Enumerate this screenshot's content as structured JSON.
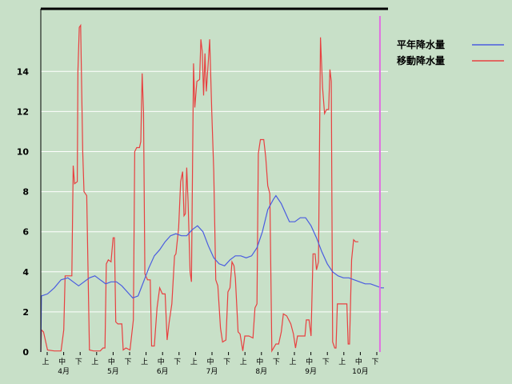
{
  "chart_data": {
    "type": "line",
    "title": "",
    "xlabel": "",
    "ylabel": "",
    "ylim": [
      0,
      16
    ],
    "yticks": [
      0,
      2,
      4,
      6,
      8,
      10,
      12,
      14
    ],
    "grid": true,
    "legend_placement": "top-right",
    "period_labels": [
      "上",
      "中",
      "下"
    ],
    "months": [
      {
        "label": "4月",
        "start": 0
      },
      {
        "label": "5月",
        "start": 3
      },
      {
        "label": "6月",
        "start": 6
      },
      {
        "label": "7月",
        "start": 9
      },
      {
        "label": "8月",
        "start": 12
      },
      {
        "label": "9月",
        "start": 15
      },
      {
        "label": "10月",
        "start": 18
      }
    ],
    "x": [
      0,
      0.05,
      0.3,
      0.6,
      0.9,
      1.2,
      1.5,
      1.8,
      2.1,
      2.4,
      2.7,
      3.0,
      3.3,
      3.6,
      3.9,
      4.2,
      4.5,
      4.8,
      5.1,
      5.4,
      5.7,
      6.0,
      6.3,
      6.6,
      6.9,
      7.2,
      7.5,
      7.8,
      8.1,
      8.4,
      8.7,
      9.0,
      9.3,
      9.6,
      9.9,
      10.2,
      10.5,
      10.8,
      11.1,
      11.4,
      11.7,
      12.0,
      12.3,
      12.6,
      12.9,
      13.2,
      13.5,
      13.8,
      14.1,
      14.4,
      14.7,
      15.0,
      15.3,
      15.6,
      15.9,
      16.2,
      16.5,
      16.8,
      17.1,
      17.4,
      17.7,
      18.0,
      18.3,
      18.6,
      18.9,
      19.2,
      19.5,
      19.8,
      20.1,
      20.4
    ],
    "series": [
      {
        "name": "平年降水量",
        "color": "#4a5ce0",
        "values": [
          0,
          2.8,
          2.9,
          3.1,
          3.4,
          3.7,
          3.7,
          3.5,
          3.3,
          3.4,
          3.7,
          3.8,
          3.6,
          3.5,
          3.5,
          3.5,
          3.5,
          3.3,
          2.9,
          2.8,
          3.3,
          3.9,
          4.7,
          5.1,
          5.6,
          5.9,
          5.8,
          5.8,
          6.1,
          6.3,
          6.1,
          5.4,
          4.7,
          4.4,
          4.3,
          4.6,
          4.8,
          4.8,
          4.7,
          4.8,
          5.2,
          6.1,
          7.3,
          7.8,
          7.3,
          6.5,
          6.5,
          6.7,
          6.7,
          6.2,
          5.4,
          4.7,
          4.1,
          3.9,
          3.7,
          3.7,
          3.6,
          3.4,
          3.4,
          3.3,
          3.2,
          3.2,
          3.2,
          3.2,
          3.2,
          3.2,
          3.2,
          3.2,
          3.2,
          3.2
        ]
      },
      {
        "name": "移動降水量",
        "color": "#e84040"
      }
    ],
    "red_points": [
      [
        0,
        0
      ],
      [
        0.05,
        1.1
      ],
      [
        0.2,
        1.0
      ],
      [
        0.5,
        0.1
      ],
      [
        1.0,
        0.05
      ],
      [
        1.5,
        0.05
      ],
      [
        1.7,
        1.1
      ],
      [
        1.8,
        3.8
      ],
      [
        2.3,
        3.8
      ],
      [
        2.4,
        9.3
      ],
      [
        2.5,
        8.4
      ],
      [
        2.7,
        8.5
      ],
      [
        2.75,
        14.0
      ],
      [
        2.85,
        16.2
      ],
      [
        2.95,
        16.3
      ],
      [
        3.1,
        10.0
      ],
      [
        3.2,
        8.0
      ],
      [
        3.4,
        7.8
      ],
      [
        3.6,
        0.1
      ],
      [
        3.9,
        0.05
      ],
      [
        4.4,
        0.05
      ],
      [
        4.6,
        0.2
      ],
      [
        4.75,
        0.2
      ],
      [
        4.85,
        4.4
      ],
      [
        5.0,
        4.6
      ],
      [
        5.2,
        4.5
      ],
      [
        5.35,
        5.7
      ],
      [
        5.45,
        5.7
      ],
      [
        5.55,
        1.5
      ],
      [
        5.7,
        1.4
      ],
      [
        6.0,
        1.4
      ],
      [
        6.1,
        0.1
      ],
      [
        6.3,
        0.2
      ],
      [
        6.6,
        0.1
      ],
      [
        6.85,
        1.6
      ],
      [
        6.95,
        10.0
      ],
      [
        7.1,
        10.2
      ],
      [
        7.3,
        10.2
      ],
      [
        7.4,
        10.5
      ],
      [
        7.5,
        13.9
      ],
      [
        7.6,
        12.0
      ],
      [
        7.7,
        3.9
      ],
      [
        7.9,
        3.6
      ],
      [
        8.1,
        3.6
      ],
      [
        8.2,
        0.3
      ],
      [
        8.4,
        0.3
      ],
      [
        8.6,
        2.2
      ],
      [
        8.8,
        3.2
      ],
      [
        9.0,
        2.9
      ],
      [
        9.2,
        2.9
      ],
      [
        9.35,
        0.6
      ],
      [
        9.5,
        1.5
      ],
      [
        9.7,
        2.4
      ],
      [
        9.9,
        4.8
      ],
      [
        10.0,
        4.9
      ],
      [
        10.2,
        6.2
      ],
      [
        10.35,
        8.5
      ],
      [
        10.5,
        9.0
      ],
      [
        10.6,
        6.8
      ],
      [
        10.7,
        6.9
      ],
      [
        10.8,
        9.2
      ],
      [
        10.9,
        7.5
      ],
      [
        11.05,
        4.0
      ],
      [
        11.15,
        3.5
      ],
      [
        11.3,
        14.4
      ],
      [
        11.4,
        12.2
      ],
      [
        11.55,
        13.5
      ],
      [
        11.75,
        13.6
      ],
      [
        11.85,
        15.6
      ],
      [
        11.95,
        15.0
      ],
      [
        12.05,
        12.8
      ],
      [
        12.15,
        14.9
      ],
      [
        12.25,
        13.0
      ],
      [
        12.4,
        14.5
      ],
      [
        12.5,
        15.6
      ],
      [
        12.65,
        12.0
      ],
      [
        12.8,
        9.0
      ],
      [
        12.95,
        3.6
      ],
      [
        13.1,
        3.3
      ],
      [
        13.3,
        1.2
      ],
      [
        13.45,
        0.5
      ],
      [
        13.7,
        0.6
      ],
      [
        13.85,
        3.0
      ],
      [
        14.0,
        3.2
      ],
      [
        14.15,
        4.5
      ],
      [
        14.3,
        4.3
      ],
      [
        14.4,
        3.7
      ],
      [
        14.6,
        1.0
      ],
      [
        14.75,
        0.9
      ],
      [
        14.95,
        0.05
      ],
      [
        15.1,
        0.8
      ],
      [
        15.4,
        0.8
      ],
      [
        15.7,
        0.7
      ],
      [
        15.85,
        2.2
      ],
      [
        16.0,
        2.4
      ],
      [
        16.1,
        9.9
      ],
      [
        16.25,
        10.6
      ],
      [
        16.5,
        10.6
      ],
      [
        16.65,
        9.7
      ],
      [
        16.8,
        8.3
      ],
      [
        16.95,
        7.9
      ],
      [
        17.1,
        0.05
      ],
      [
        17.4,
        0.4
      ],
      [
        17.6,
        0.4
      ],
      [
        17.8,
        1.0
      ],
      [
        17.95,
        1.9
      ],
      [
        18.2,
        1.8
      ],
      [
        18.5,
        1.4
      ],
      [
        18.7,
        0.9
      ],
      [
        18.85,
        0.2
      ],
      [
        19.0,
        0.8
      ],
      [
        19.3,
        0.8
      ],
      [
        19.55,
        0.8
      ],
      [
        19.65,
        1.6
      ],
      [
        19.85,
        1.6
      ],
      [
        20.0,
        0.8
      ],
      [
        20.15,
        4.9
      ],
      [
        20.3,
        4.9
      ],
      [
        20.4,
        4.1
      ],
      [
        20.55,
        4.5
      ],
      [
        20.7,
        15.7
      ],
      [
        20.85,
        13.2
      ],
      [
        21.0,
        11.9
      ],
      [
        21.15,
        12.1
      ],
      [
        21.3,
        12.1
      ],
      [
        21.4,
        14.1
      ],
      [
        21.5,
        13.5
      ],
      [
        21.6,
        0.5
      ],
      [
        21.75,
        0.2
      ],
      [
        21.85,
        0.2
      ],
      [
        21.95,
        2.4
      ],
      [
        22.1,
        2.4
      ],
      [
        22.4,
        2.4
      ],
      [
        22.65,
        2.4
      ],
      [
        22.75,
        0.4
      ],
      [
        22.85,
        0.4
      ],
      [
        23.0,
        4.6
      ],
      [
        23.15,
        5.6
      ],
      [
        23.3,
        5.5
      ],
      [
        23.5,
        5.5
      ]
    ],
    "blue_points": [
      [
        0,
        0
      ],
      [
        0.05,
        2.8
      ],
      [
        0.5,
        2.9
      ],
      [
        1.0,
        3.2
      ],
      [
        1.5,
        3.6
      ],
      [
        2.0,
        3.7
      ],
      [
        2.4,
        3.5
      ],
      [
        2.8,
        3.3
      ],
      [
        3.2,
        3.5
      ],
      [
        3.6,
        3.7
      ],
      [
        4.0,
        3.8
      ],
      [
        4.4,
        3.6
      ],
      [
        4.8,
        3.4
      ],
      [
        5.2,
        3.5
      ],
      [
        5.6,
        3.5
      ],
      [
        6.0,
        3.3
      ],
      [
        6.4,
        3.0
      ],
      [
        6.8,
        2.7
      ],
      [
        7.2,
        2.8
      ],
      [
        7.6,
        3.5
      ],
      [
        8.0,
        4.2
      ],
      [
        8.4,
        4.8
      ],
      [
        8.8,
        5.1
      ],
      [
        9.2,
        5.5
      ],
      [
        9.6,
        5.8
      ],
      [
        10.0,
        5.9
      ],
      [
        10.4,
        5.8
      ],
      [
        10.8,
        5.8
      ],
      [
        11.2,
        6.1
      ],
      [
        11.6,
        6.3
      ],
      [
        12.0,
        6.0
      ],
      [
        12.4,
        5.3
      ],
      [
        12.8,
        4.7
      ],
      [
        13.2,
        4.4
      ],
      [
        13.6,
        4.3
      ],
      [
        14.0,
        4.6
      ],
      [
        14.4,
        4.8
      ],
      [
        14.8,
        4.8
      ],
      [
        15.2,
        4.7
      ],
      [
        15.6,
        4.8
      ],
      [
        16.0,
        5.2
      ],
      [
        16.4,
        6.0
      ],
      [
        16.8,
        7.1
      ],
      [
        17.2,
        7.6
      ],
      [
        17.4,
        7.8
      ],
      [
        17.8,
        7.4
      ],
      [
        18.2,
        6.8
      ],
      [
        18.4,
        6.5
      ],
      [
        18.8,
        6.5
      ],
      [
        19.2,
        6.7
      ],
      [
        19.6,
        6.7
      ],
      [
        20.0,
        6.3
      ],
      [
        20.4,
        5.7
      ],
      [
        20.8,
        5.0
      ],
      [
        21.2,
        4.4
      ],
      [
        21.6,
        4.0
      ],
      [
        22.0,
        3.8
      ],
      [
        22.4,
        3.7
      ],
      [
        22.8,
        3.7
      ],
      [
        23.2,
        3.6
      ],
      [
        23.6,
        3.5
      ],
      [
        24.0,
        3.4
      ],
      [
        24.4,
        3.4
      ],
      [
        24.8,
        3.3
      ],
      [
        25.2,
        3.2
      ],
      [
        25.4,
        3.2
      ]
    ],
    "x_range": [
      0,
      25.4
    ],
    "marker_x": 25.1,
    "marker_color": "#e070e0"
  }
}
